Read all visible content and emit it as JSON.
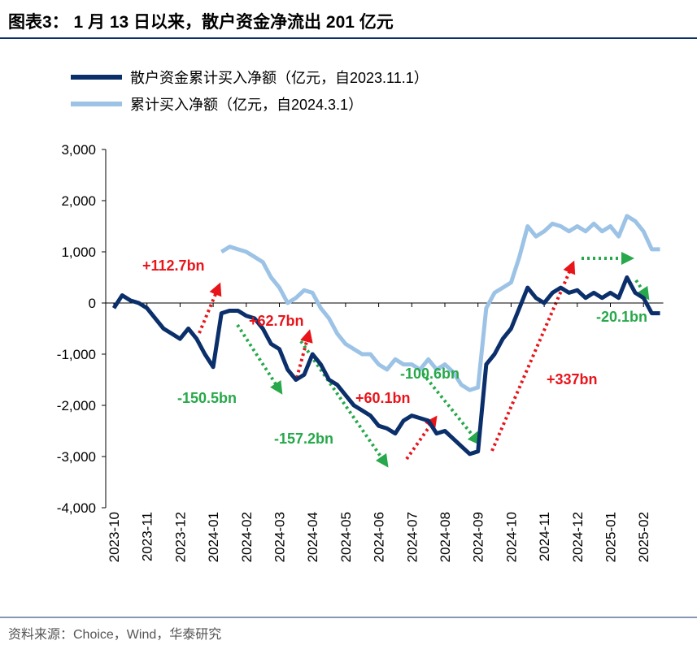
{
  "chart_data": {
    "type": "line",
    "title": "图表3： 1 月 13 日以来，散户资金净流出 201 亿元",
    "source": "资料来源：Choice，Wind，华泰研究",
    "categories": [
      "2023-10",
      null,
      null,
      null,
      "2023-11",
      null,
      null,
      null,
      "2023-12",
      null,
      null,
      null,
      "2024-01",
      null,
      null,
      null,
      "2024-02",
      null,
      null,
      null,
      "2024-03",
      null,
      null,
      null,
      "2024-04",
      null,
      null,
      null,
      "2024-05",
      null,
      null,
      null,
      "2024-06",
      null,
      null,
      null,
      "2024-07",
      null,
      null,
      null,
      "2024-08",
      null,
      null,
      null,
      "2024-09",
      null,
      null,
      null,
      "2024-10",
      null,
      null,
      null,
      "2024-11",
      null,
      null,
      null,
      "2024-12",
      null,
      null,
      null,
      "2025-01",
      null,
      null,
      null,
      "2025-02",
      null,
      null
    ],
    "series": [
      {
        "name": "散户资金累计买入净额（亿元，自2023.11.1）",
        "color": "#0b2f6b",
        "values": [
          -100,
          150,
          50,
          0,
          -100,
          -300,
          -500,
          -600,
          -700,
          -500,
          -700,
          -1000,
          -1250,
          -200,
          -150,
          -150,
          -250,
          -300,
          -500,
          -800,
          -900,
          -1300,
          -1500,
          -1400,
          -1000,
          -1200,
          -1500,
          -1600,
          -1800,
          -2000,
          -2100,
          -2200,
          -2400,
          -2450,
          -2550,
          -2300,
          -2200,
          -2250,
          -2300,
          -2550,
          -2500,
          -2650,
          -2800,
          -2950,
          -2900,
          -1200,
          -1000,
          -700,
          -500,
          -100,
          300,
          100,
          0,
          200,
          300,
          200,
          250,
          100,
          200,
          100,
          200,
          100,
          500,
          200,
          100,
          -200,
          -200
        ]
      },
      {
        "name": "累计买入净额（亿元，自2024.3.1）",
        "color": "#9cc3e6",
        "values": [
          null,
          null,
          null,
          null,
          null,
          null,
          null,
          null,
          null,
          null,
          null,
          null,
          null,
          1000,
          1100,
          1050,
          1000,
          900,
          800,
          500,
          300,
          0,
          100,
          250,
          200,
          -100,
          -300,
          -600,
          -800,
          -900,
          -1000,
          -1000,
          -1200,
          -1300,
          -1100,
          -1200,
          -1200,
          -1300,
          -1100,
          -1300,
          -1200,
          -1350,
          -1600,
          -1700,
          -1650,
          -100,
          200,
          300,
          400,
          900,
          1500,
          1300,
          1400,
          1550,
          1500,
          1400,
          1500,
          1400,
          1550,
          1400,
          1500,
          1300,
          1700,
          1600,
          1400,
          1050,
          1050
        ]
      }
    ],
    "ylim": [
      -4000,
      3000
    ],
    "yticks": [
      {
        "value": 3000,
        "label": "3,000"
      },
      {
        "value": 2000,
        "label": "2,000"
      },
      {
        "value": 1000,
        "label": "1,000"
      },
      0,
      {
        "value": -1000,
        "label": "-1,000"
      },
      {
        "value": -2000,
        "label": "-2,000"
      },
      {
        "value": -3000,
        "label": "-3,000"
      },
      {
        "value": -4000,
        "label": "-4,000"
      }
    ],
    "annotations": [
      {
        "text": "+112.7bn",
        "color": "#e8141a"
      },
      {
        "text": "-150.5bn",
        "color": "#27a84a"
      },
      {
        "text": "+62.7bn",
        "color": "#e8141a"
      },
      {
        "text": "-157.2bn",
        "color": "#27a84a"
      },
      {
        "text": "+60.1bn",
        "color": "#e8141a"
      },
      {
        "text": "-100.6bn",
        "color": "#27a84a"
      },
      {
        "text": "+337bn",
        "color": "#e8141a"
      },
      {
        "text": "-20.1bn",
        "color": "#27a84a"
      }
    ]
  }
}
